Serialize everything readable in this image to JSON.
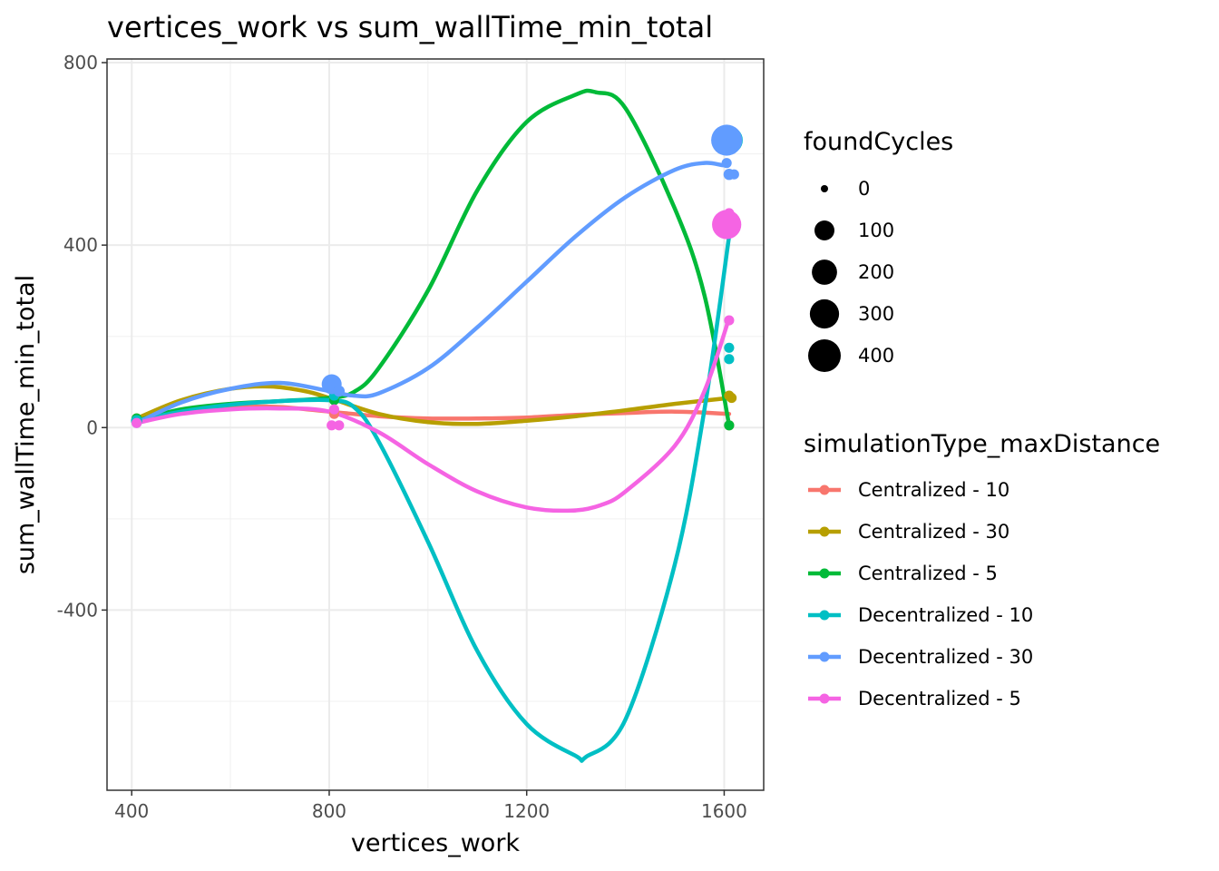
{
  "chart_data": {
    "type": "scatter",
    "title": "vertices_work  vs  sum_wallTime_min_total",
    "xlabel": "vertices_work",
    "ylabel": "sum_wallTime_min_total",
    "xlim": [
      350,
      1680
    ],
    "ylim": [
      -795,
      808
    ],
    "x_ticks": [
      400,
      800,
      1200,
      1600
    ],
    "x_tick_labels": [
      "400",
      "800",
      "1200",
      "1600"
    ],
    "y_ticks": [
      -400,
      0,
      400,
      800
    ],
    "y_tick_labels": [
      "-400",
      "0",
      "400",
      "800"
    ],
    "grid": true,
    "legend_position": "right",
    "size_legend": {
      "title": "foundCycles",
      "levels": [
        {
          "label": "0",
          "value": 0
        },
        {
          "label": "100",
          "value": 100
        },
        {
          "label": "200",
          "value": 200
        },
        {
          "label": "300",
          "value": 300
        },
        {
          "label": "400",
          "value": 400
        }
      ]
    },
    "color_legend": {
      "title": "simulationType_maxDistance"
    },
    "series": [
      {
        "name": "Centralized - 10",
        "color": "#F8766D",
        "smooth": [
          [
            410,
            15
          ],
          [
            500,
            35
          ],
          [
            600,
            45
          ],
          [
            700,
            45
          ],
          [
            800,
            35
          ],
          [
            900,
            25
          ],
          [
            1000,
            20
          ],
          [
            1100,
            20
          ],
          [
            1200,
            22
          ],
          [
            1300,
            28
          ],
          [
            1400,
            32
          ],
          [
            1500,
            35
          ],
          [
            1610,
            30
          ]
        ],
        "points": [
          {
            "x": 410,
            "y": 15,
            "size": 10
          },
          {
            "x": 810,
            "y": 30,
            "size": 5
          },
          {
            "x": 1610,
            "y": 5,
            "size": 5
          }
        ]
      },
      {
        "name": "Centralized - 30",
        "color": "#B79F00",
        "smooth": [
          [
            410,
            20
          ],
          [
            500,
            60
          ],
          [
            600,
            85
          ],
          [
            680,
            90
          ],
          [
            750,
            80
          ],
          [
            800,
            65
          ],
          [
            900,
            30
          ],
          [
            1000,
            12
          ],
          [
            1100,
            8
          ],
          [
            1200,
            15
          ],
          [
            1300,
            25
          ],
          [
            1400,
            38
          ],
          [
            1500,
            52
          ],
          [
            1610,
            65
          ]
        ],
        "points": [
          {
            "x": 410,
            "y": 20,
            "size": 5
          },
          {
            "x": 810,
            "y": 65,
            "size": 5
          },
          {
            "x": 1610,
            "y": 70,
            "size": 5
          },
          {
            "x": 1615,
            "y": 65,
            "size": 5
          }
        ]
      },
      {
        "name": "Centralized - 5",
        "color": "#00BA38",
        "smooth": [
          [
            410,
            15
          ],
          [
            500,
            40
          ],
          [
            600,
            52
          ],
          [
            700,
            58
          ],
          [
            800,
            65
          ],
          [
            850,
            78
          ],
          [
            900,
            130
          ],
          [
            1000,
            300
          ],
          [
            1100,
            520
          ],
          [
            1200,
            670
          ],
          [
            1300,
            730
          ],
          [
            1340,
            735
          ],
          [
            1400,
            700
          ],
          [
            1500,
            480
          ],
          [
            1560,
            290
          ],
          [
            1610,
            5
          ]
        ],
        "points": [
          {
            "x": 410,
            "y": 20,
            "size": 5
          },
          {
            "x": 810,
            "y": 60,
            "size": 5
          },
          {
            "x": 1610,
            "y": 5,
            "size": 5
          }
        ]
      },
      {
        "name": "Decentralized - 10",
        "color": "#00BFC4",
        "smooth": [
          [
            410,
            15
          ],
          [
            500,
            35
          ],
          [
            600,
            50
          ],
          [
            700,
            58
          ],
          [
            800,
            60
          ],
          [
            850,
            45
          ],
          [
            900,
            -30
          ],
          [
            1000,
            -250
          ],
          [
            1100,
            -490
          ],
          [
            1200,
            -650
          ],
          [
            1300,
            -720
          ],
          [
            1320,
            -722
          ],
          [
            1400,
            -640
          ],
          [
            1500,
            -300
          ],
          [
            1560,
            40
          ],
          [
            1610,
            420
          ]
        ],
        "points": [
          {
            "x": 410,
            "y": 15,
            "size": 10
          },
          {
            "x": 810,
            "y": 70,
            "size": 5
          },
          {
            "x": 1610,
            "y": 175,
            "size": 5
          },
          {
            "x": 1610,
            "y": 150,
            "size": 5
          },
          {
            "x": 1610,
            "y": 630,
            "size": 250
          }
        ]
      },
      {
        "name": "Decentralized - 30",
        "color": "#619CFF",
        "smooth": [
          [
            410,
            10
          ],
          [
            500,
            55
          ],
          [
            600,
            85
          ],
          [
            700,
            98
          ],
          [
            800,
            80
          ],
          [
            850,
            70
          ],
          [
            900,
            75
          ],
          [
            1000,
            130
          ],
          [
            1100,
            220
          ],
          [
            1200,
            320
          ],
          [
            1300,
            420
          ],
          [
            1400,
            505
          ],
          [
            1500,
            565
          ],
          [
            1560,
            580
          ],
          [
            1600,
            575
          ],
          [
            1610,
            580
          ]
        ],
        "points": [
          {
            "x": 410,
            "y": 10,
            "size": 5
          },
          {
            "x": 805,
            "y": 95,
            "size": 100
          },
          {
            "x": 820,
            "y": 80,
            "size": 10
          },
          {
            "x": 1605,
            "y": 630,
            "size": 350
          },
          {
            "x": 1620,
            "y": 630,
            "size": 50
          },
          {
            "x": 1605,
            "y": 580,
            "size": 5
          },
          {
            "x": 1610,
            "y": 555,
            "size": 10
          },
          {
            "x": 1620,
            "y": 555,
            "size": 5
          }
        ]
      },
      {
        "name": "Decentralized - 5",
        "color": "#F564E3",
        "smooth": [
          [
            410,
            10
          ],
          [
            500,
            30
          ],
          [
            600,
            40
          ],
          [
            700,
            42
          ],
          [
            800,
            35
          ],
          [
            900,
            -10
          ],
          [
            1000,
            -80
          ],
          [
            1100,
            -140
          ],
          [
            1200,
            -175
          ],
          [
            1290,
            -182
          ],
          [
            1350,
            -170
          ],
          [
            1400,
            -140
          ],
          [
            1500,
            -40
          ],
          [
            1560,
            80
          ],
          [
            1610,
            240
          ]
        ],
        "points": [
          {
            "x": 410,
            "y": 10,
            "size": 5
          },
          {
            "x": 805,
            "y": 5,
            "size": 5
          },
          {
            "x": 820,
            "y": 5,
            "size": 5
          },
          {
            "x": 810,
            "y": 40,
            "size": 5
          },
          {
            "x": 1605,
            "y": 445,
            "size": 300
          },
          {
            "x": 1610,
            "y": 470,
            "size": 5
          },
          {
            "x": 1610,
            "y": 235,
            "size": 5
          }
        ]
      }
    ]
  }
}
